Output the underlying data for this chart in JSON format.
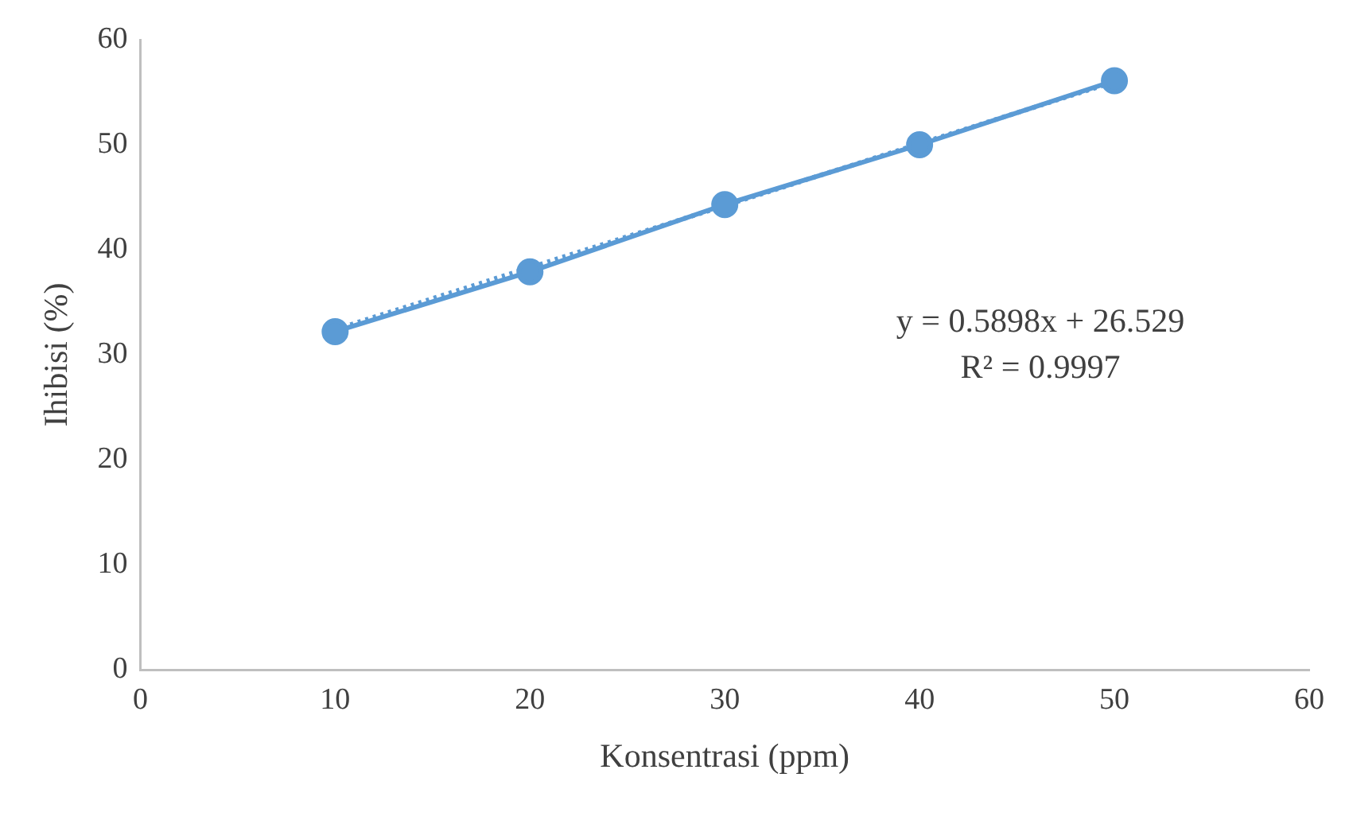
{
  "chart_data": {
    "type": "line",
    "xlabel": "Konsentrasi (ppm)",
    "ylabel": "Ihibisi (%)",
    "x": [
      10,
      20,
      30,
      40,
      50
    ],
    "series": [
      {
        "color": "#5b9bd5",
        "values": [
          32.2,
          37.9,
          44.3,
          50.0,
          56.1
        ],
        "marker": "circle",
        "line_style": "solid"
      },
      {
        "color": "#5b9bd5",
        "x": [
          10,
          50
        ],
        "values": [
          32.4,
          56.0
        ],
        "line_style": "dotted"
      }
    ],
    "xlim": [
      0,
      60
    ],
    "xticks": [
      0,
      10,
      20,
      30,
      40,
      50,
      60
    ],
    "ylim": [
      0,
      60
    ],
    "yticks": [
      0,
      10,
      20,
      30,
      40,
      50,
      60
    ],
    "grid": false,
    "legend": false,
    "annotations": [
      "y = 0.5898x + 26.529",
      "R² = 0.9997"
    ]
  }
}
